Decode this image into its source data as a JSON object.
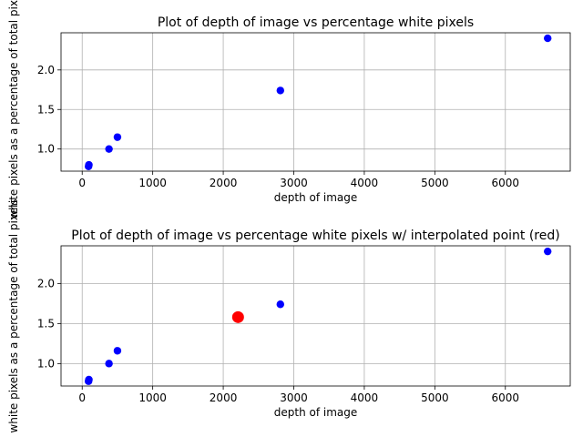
{
  "chart_data": [
    {
      "type": "scatter",
      "title": "Plot of depth of image vs percentage white pixels",
      "xlabel": "depth of image",
      "ylabel": "white pixels as a percentage of total pixels",
      "xlim": [
        -300,
        6920
      ],
      "ylim": [
        0.72,
        2.47
      ],
      "xticks": [
        0,
        1000,
        2000,
        3000,
        4000,
        5000,
        6000
      ],
      "yticks": [
        1.0,
        1.5,
        2.0
      ],
      "ytick_labels": [
        "1.0",
        "1.5",
        "2.0"
      ],
      "grid": true,
      "series": [
        {
          "color": "#0000ff",
          "points": [
            {
              "x": 90,
              "y": 0.78
            },
            {
              "x": 95,
              "y": 0.8
            },
            {
              "x": 380,
              "y": 1.0
            },
            {
              "x": 500,
              "y": 1.15
            },
            {
              "x": 2810,
              "y": 1.74
            },
            {
              "x": 6600,
              "y": 2.4
            }
          ]
        }
      ]
    },
    {
      "type": "scatter",
      "title": "Plot of depth of image vs percentage white pixels w/ interpolated point (red)",
      "xlabel": "depth of image",
      "ylabel": "white pixels as a percentage of total pixels",
      "xlim": [
        -300,
        6920
      ],
      "ylim": [
        0.72,
        2.47
      ],
      "xticks": [
        0,
        1000,
        2000,
        3000,
        4000,
        5000,
        6000
      ],
      "yticks": [
        1.0,
        1.5,
        2.0
      ],
      "ytick_labels": [
        "1.0",
        "1.5",
        "2.0"
      ],
      "grid": true,
      "series": [
        {
          "color": "#0000ff",
          "points": [
            {
              "x": 90,
              "y": 0.78
            },
            {
              "x": 95,
              "y": 0.8
            },
            {
              "x": 380,
              "y": 1.0
            },
            {
              "x": 500,
              "y": 1.16
            },
            {
              "x": 2810,
              "y": 1.74
            },
            {
              "x": 6600,
              "y": 2.4
            }
          ]
        },
        {
          "color": "#ff0000",
          "points": [
            {
              "x": 2210,
              "y": 1.58
            }
          ]
        }
      ]
    }
  ]
}
